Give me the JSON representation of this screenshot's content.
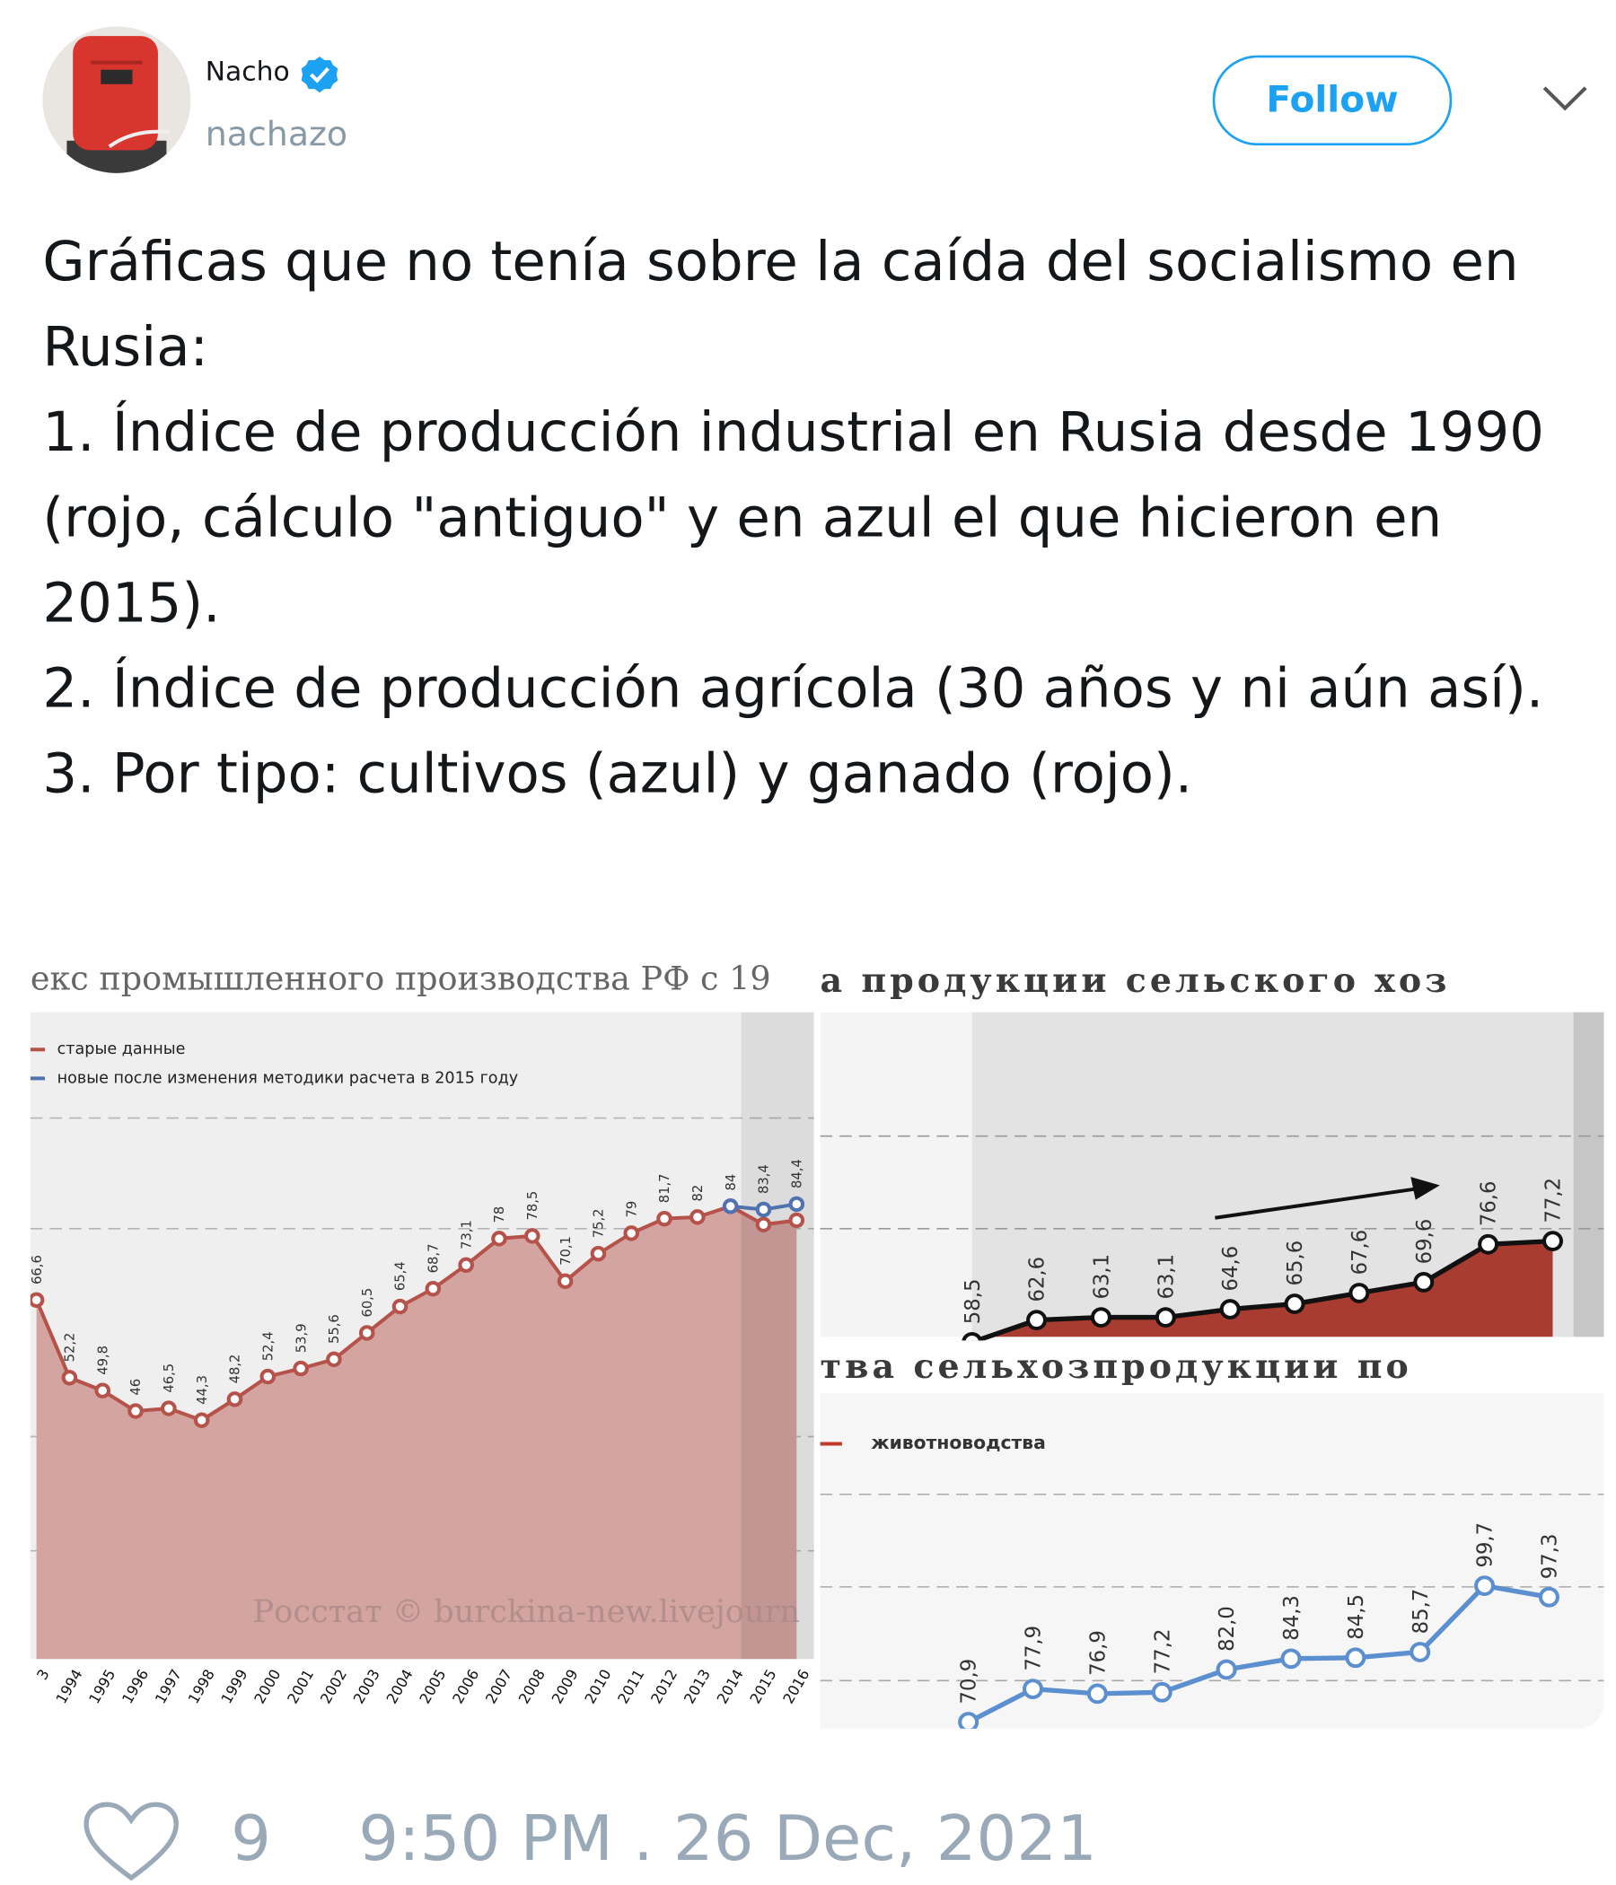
{
  "user": {
    "name": "Nacho",
    "handle": "nachazo"
  },
  "follow_button": "Follow",
  "tweet": {
    "paragraphs": [
      "Gráficas que no tenía sobre la caída del socialismo en Rusia:",
      "1. Índice de producción industrial en Rusia desde 1990 (rojo, cálculo \"antiguo\" y en azul el que hicieron en 2015).",
      "2. Índice de producción agrícola (30 años y ni aún así).",
      "3. Por tipo: cultivos (azul) y ganado (rojo)."
    ]
  },
  "media": [
    {
      "type": "area",
      "title": "екс промышленного производства РФ с 19",
      "watermark": "Росстат © burckina-new.livejourn",
      "categories": [
        "3",
        "1994",
        "1995",
        "1996",
        "1997",
        "1998",
        "1999",
        "2000",
        "2001",
        "2002",
        "2003",
        "2004",
        "2005",
        "2006",
        "2007",
        "2008",
        "2009",
        "2010",
        "2011",
        "2012",
        "2013",
        "2014",
        "2015",
        "2016"
      ],
      "ylim": [
        0,
        120
      ],
      "series": [
        {
          "name": "старые данные",
          "color": "#b5524a",
          "fill": "#d3a4a0",
          "values": [
            66.6,
            52.2,
            49.8,
            46,
            46.5,
            44.3,
            48.2,
            52.4,
            53.9,
            55.6,
            60.5,
            65.4,
            68.7,
            73.1,
            78,
            78.5,
            70.1,
            75.2,
            79,
            81.7,
            82,
            84,
            80.6,
            81.4
          ],
          "value_labels": [
            "66,6",
            "52,2",
            "49,8",
            "46",
            "46,5",
            "44,3",
            "48,2",
            "52,4",
            "53,9",
            "55,6",
            "60,5",
            "65,4",
            "68,7",
            "73,1",
            "78",
            "78,5",
            "70,1",
            "75,2",
            "79",
            "81,7",
            "82",
            "84",
            null,
            null
          ]
        },
        {
          "name": "новые после изменения методики расчета в 2015 году",
          "color": "#4f72b0",
          "values": [
            null,
            null,
            null,
            null,
            null,
            null,
            null,
            null,
            null,
            null,
            null,
            null,
            null,
            null,
            null,
            null,
            null,
            null,
            null,
            null,
            null,
            84,
            83.4,
            84.4
          ],
          "value_labels": [
            null,
            null,
            null,
            null,
            null,
            null,
            null,
            null,
            null,
            null,
            null,
            null,
            null,
            null,
            null,
            null,
            null,
            null,
            null,
            null,
            null,
            null,
            "83,4",
            "84,4"
          ]
        }
      ]
    },
    {
      "type": "area",
      "title": "а продукции сельского хоз",
      "ylim": [
        59.5,
        119.5
      ],
      "series": [
        {
          "color": "#111111",
          "fill": "#a83c31",
          "values": [
            58.5,
            62.6,
            63.1,
            63.1,
            64.6,
            65.6,
            67.6,
            69.6,
            76.6,
            77.2
          ],
          "value_labels": [
            "58,5",
            "62,6",
            "63,1",
            "63,1",
            "64,6",
            "65,6",
            "67,6",
            "69,6",
            "76,6",
            "77,2"
          ]
        }
      ]
    },
    {
      "type": "line",
      "title": "тва сельхозпродукции по",
      "legend": [
        {
          "name": "животноводства",
          "color": "#c0392b"
        }
      ],
      "ylim": [
        69.5,
        151
      ],
      "series": [
        {
          "color": "#5b8fd0",
          "values": [
            70.9,
            77.9,
            76.9,
            77.2,
            82.0,
            84.3,
            84.5,
            85.7,
            99.7,
            97.3
          ],
          "value_labels": [
            "70,9",
            "77,9",
            "76,9",
            "77,2",
            "82,0",
            "84,3",
            "84,5",
            "85,7",
            "99,7",
            "97,3"
          ]
        }
      ]
    }
  ],
  "likes": 9,
  "timestamp": "9:50 PM . 26 Dec, 2021"
}
